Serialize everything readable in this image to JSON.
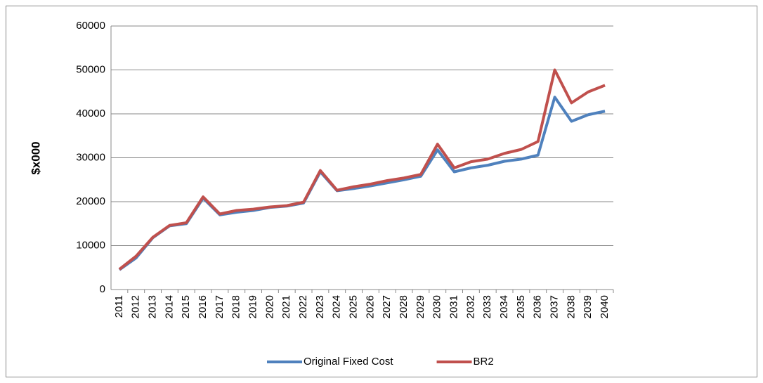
{
  "chart_data": {
    "type": "line",
    "y_label": "$x000",
    "categories": [
      "2011",
      "2012",
      "2013",
      "2014",
      "2015",
      "2016",
      "2017",
      "2018",
      "2019",
      "2020",
      "2021",
      "2022",
      "2023",
      "2024",
      "2025",
      "2026",
      "2027",
      "2028",
      "2029",
      "2030",
      "2031",
      "2032",
      "2033",
      "2034",
      "2035",
      "2036",
      "2037",
      "2038",
      "2039",
      "2040"
    ],
    "series": [
      {
        "name": "Original Fixed Cost",
        "color": "#4f81bd",
        "values": [
          4500,
          7200,
          11800,
          14500,
          15000,
          20800,
          17000,
          17600,
          18000,
          18700,
          19000,
          19700,
          26800,
          22500,
          23000,
          23600,
          24300,
          25000,
          25800,
          31800,
          26800,
          27700,
          28300,
          29200,
          29700,
          30600,
          43800,
          38300,
          39800,
          40600
        ]
      },
      {
        "name": "BR2",
        "color": "#c0504d",
        "values": [
          4600,
          7600,
          11900,
          14600,
          15200,
          21100,
          17200,
          18000,
          18300,
          18800,
          19100,
          19900,
          27100,
          22600,
          23400,
          24000,
          24800,
          25400,
          26200,
          33100,
          27700,
          29100,
          29700,
          31000,
          31900,
          33700,
          50000,
          42500,
          45000,
          46500
        ]
      }
    ],
    "ylim": [
      0,
      60000
    ],
    "yticks": [
      0,
      10000,
      20000,
      30000,
      40000,
      50000,
      60000
    ],
    "grid": true,
    "legend": "bottom"
  }
}
